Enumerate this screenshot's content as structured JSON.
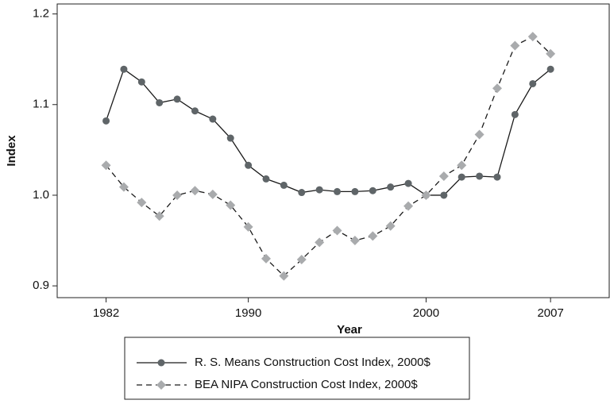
{
  "chart_data": {
    "type": "line",
    "xlabel": "Year",
    "ylabel": "Index",
    "x": [
      1982,
      1983,
      1984,
      1985,
      1986,
      1987,
      1988,
      1989,
      1990,
      1991,
      1992,
      1993,
      1994,
      1995,
      1996,
      1997,
      1998,
      1999,
      2000,
      2001,
      2002,
      2003,
      2004,
      2005,
      2006,
      2007
    ],
    "series": [
      {
        "name": "R. S. Means Construction Cost Index, 2000$",
        "color": "#5f6568",
        "line_color": "#1a1a1a",
        "linestyle": "solid",
        "marker": "circle",
        "values": [
          1.082,
          1.139,
          1.125,
          1.102,
          1.106,
          1.093,
          1.084,
          1.063,
          1.033,
          1.018,
          1.011,
          1.003,
          1.006,
          1.004,
          1.004,
          1.005,
          1.009,
          1.013,
          1.0,
          1.0,
          1.02,
          1.021,
          1.02,
          1.089,
          1.123,
          1.139
        ]
      },
      {
        "name": "BEA NIPA Construction Cost Index, 2000$",
        "color": "#a9abad",
        "line_color": "#1a1a1a",
        "linestyle": "dashed",
        "marker": "diamond",
        "values": [
          1.033,
          1.009,
          0.992,
          0.977,
          1.0,
          1.005,
          1.001,
          0.989,
          0.965,
          0.93,
          0.911,
          0.929,
          0.948,
          0.961,
          0.95,
          0.955,
          0.966,
          0.988,
          1.0,
          1.021,
          1.033,
          1.067,
          1.118,
          1.165,
          1.175,
          1.156
        ]
      }
    ],
    "xlim": [
      1979.25,
      2010.3
    ],
    "xticks": [
      1982,
      1990,
      2000,
      2007
    ],
    "ylim": [
      0.887,
      1.211
    ],
    "yticks": [
      0.9,
      {
        "value": 1.0,
        "label": "1.0"
      },
      1.1,
      1.2
    ],
    "grid": false,
    "legend": "bottom"
  }
}
